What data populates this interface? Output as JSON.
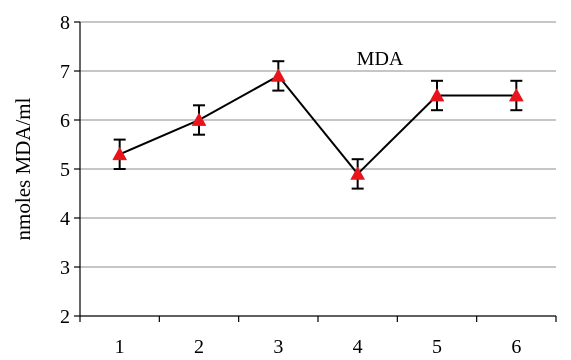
{
  "chart_data": {
    "type": "line",
    "title": "MDA",
    "xlabel": "",
    "ylabel": "nmoles MDA/ml",
    "categories": [
      "1",
      "2",
      "3",
      "4",
      "5",
      "6"
    ],
    "ylim": [
      2,
      8
    ],
    "yticks": [
      "2",
      "3",
      "4",
      "5",
      "6",
      "7",
      "8"
    ],
    "grid": "horizontal",
    "series": [
      {
        "values": [
          5.3,
          6.0,
          6.9,
          4.9,
          6.5,
          6.5
        ],
        "errors": [
          0.3,
          0.3,
          0.3,
          0.3,
          0.3,
          0.3
        ],
        "line_color": "#000000",
        "marker": "triangle",
        "marker_color": "#e8141b"
      }
    ]
  }
}
